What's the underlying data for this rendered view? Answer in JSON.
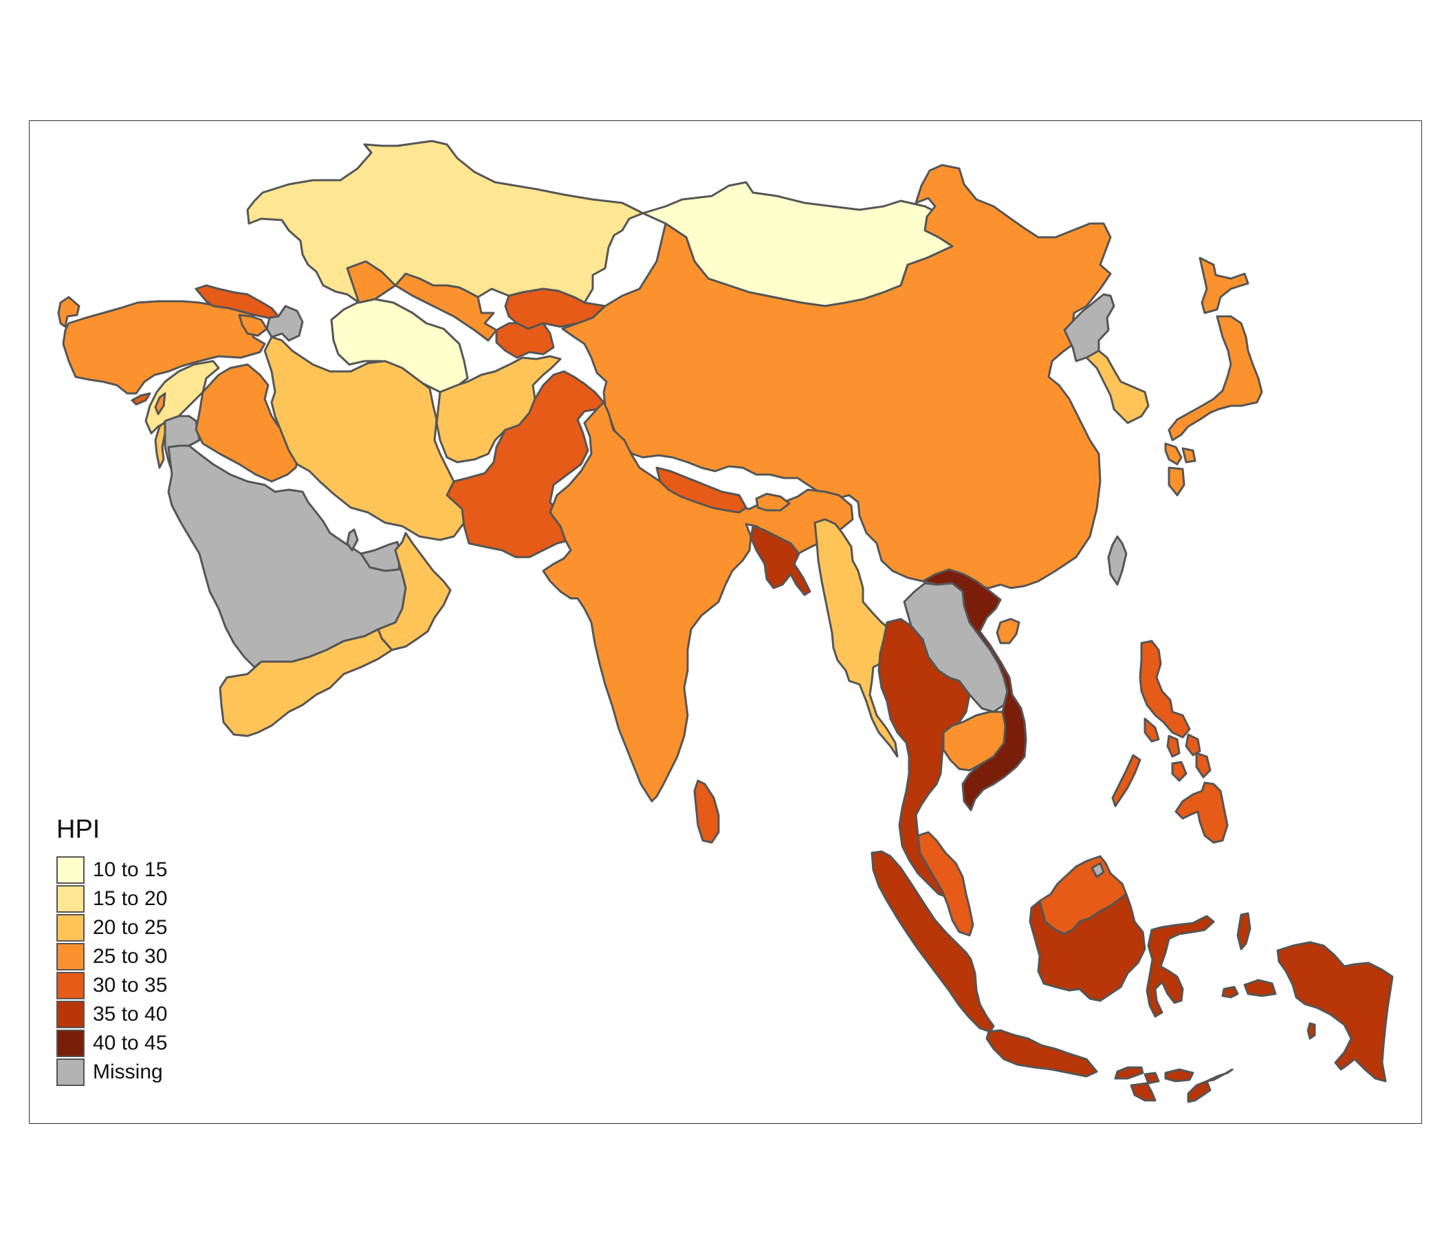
{
  "legend": {
    "title": "HPI",
    "classes": [
      {
        "label": "10 to 15",
        "color": "#ffffcc"
      },
      {
        "label": "15 to 20",
        "color": "#fee692"
      },
      {
        "label": "20 to 25",
        "color": "#fec457"
      },
      {
        "label": "25 to 30",
        "color": "#fb922e"
      },
      {
        "label": "30 to 35",
        "color": "#e55b17"
      },
      {
        "label": "35 to 40",
        "color": "#b83607"
      },
      {
        "label": "40 to 45",
        "color": "#7a1e09"
      },
      {
        "label": "Missing",
        "color": "#b3b3b3"
      }
    ]
  },
  "regions": [
    {
      "name": "Kazakhstan",
      "class": "15 to 20"
    },
    {
      "name": "Mongolia",
      "class": "10 to 15"
    },
    {
      "name": "Turkmenistan",
      "class": "10 to 15"
    },
    {
      "name": "Uzbekistan",
      "class": "25 to 30"
    },
    {
      "name": "Kyrgyzstan",
      "class": "30 to 35"
    },
    {
      "name": "Tajikistan",
      "class": "30 to 35"
    },
    {
      "name": "China",
      "class": "25 to 30"
    },
    {
      "name": "Japan",
      "class": "25 to 30"
    },
    {
      "name": "North Korea",
      "class": "Missing"
    },
    {
      "name": "South Korea",
      "class": "20 to 25"
    },
    {
      "name": "Taiwan",
      "class": "Missing"
    },
    {
      "name": "Turkey",
      "class": "25 to 30"
    },
    {
      "name": "Georgia",
      "class": "30 to 35"
    },
    {
      "name": "Armenia",
      "class": "25 to 30"
    },
    {
      "name": "Azerbaijan",
      "class": "Missing"
    },
    {
      "name": "Cyprus",
      "class": "30 to 35"
    },
    {
      "name": "Syria",
      "class": "15 to 20"
    },
    {
      "name": "Lebanon",
      "class": "25 to 30"
    },
    {
      "name": "Israel",
      "class": "20 to 25"
    },
    {
      "name": "Jordan",
      "class": "Missing"
    },
    {
      "name": "Iraq",
      "class": "25 to 30"
    },
    {
      "name": "Iran",
      "class": "20 to 25"
    },
    {
      "name": "Afghanistan",
      "class": "20 to 25"
    },
    {
      "name": "Pakistan",
      "class": "30 to 35"
    },
    {
      "name": "India",
      "class": "25 to 30"
    },
    {
      "name": "Nepal",
      "class": "30 to 35"
    },
    {
      "name": "Bhutan",
      "class": "25 to 30"
    },
    {
      "name": "Bangladesh",
      "class": "35 to 40"
    },
    {
      "name": "Sri Lanka",
      "class": "30 to 35"
    },
    {
      "name": "Saudi Arabia",
      "class": "Missing"
    },
    {
      "name": "Kuwait",
      "class": "Missing"
    },
    {
      "name": "Qatar",
      "class": "Missing"
    },
    {
      "name": "United Arab Emirates",
      "class": "Missing"
    },
    {
      "name": "Oman",
      "class": "20 to 25"
    },
    {
      "name": "Yemen",
      "class": "20 to 25"
    },
    {
      "name": "Myanmar",
      "class": "20 to 25"
    },
    {
      "name": "Thailand",
      "class": "35 to 40"
    },
    {
      "name": "Laos",
      "class": "Missing"
    },
    {
      "name": "Vietnam",
      "class": "40 to 45"
    },
    {
      "name": "Cambodia",
      "class": "25 to 30"
    },
    {
      "name": "Malaysia (peninsular)",
      "class": "30 to 35"
    },
    {
      "name": "Malaysia (Borneo)",
      "class": "30 to 35"
    },
    {
      "name": "Brunei",
      "class": "Missing"
    },
    {
      "name": "Philippines",
      "class": "30 to 35"
    },
    {
      "name": "Indonesia",
      "class": "35 to 40"
    },
    {
      "name": "Timor-Leste",
      "class": "Missing"
    },
    {
      "name": "Hainan (China)",
      "class": "25 to 30"
    }
  ]
}
